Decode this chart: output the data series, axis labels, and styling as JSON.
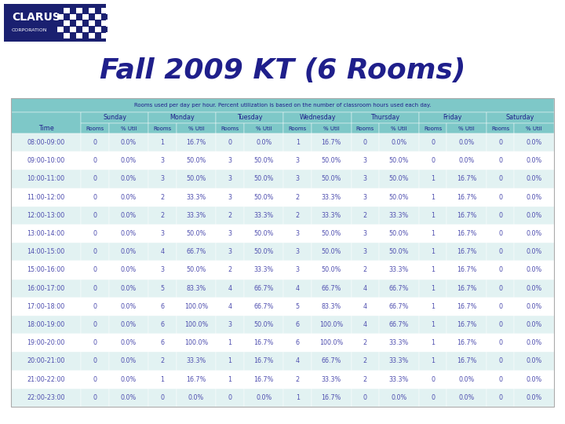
{
  "title": "Fall 2009 KT (6 Rooms)",
  "subtitle": "Rooms used per day per hour. Percent utilization is based on the number of classroom hours used each day.",
  "days": [
    "Sunday",
    "Monday",
    "Tuesday",
    "Wednesday",
    "Thursday",
    "Friday",
    "Saturday"
  ],
  "time_slots": [
    "08:00-09:00",
    "09:00-10:00",
    "10:00-11:00",
    "11:00-12:00",
    "12:00-13:00",
    "13:00-14:00",
    "14:00-15:00",
    "15:00-16:00",
    "16:00-17:00",
    "17:00-18:00",
    "18:00-19:00",
    "19:00-20:00",
    "20:00-21:00",
    "21:00-22:00",
    "22:00-23:00"
  ],
  "table_data": [
    [
      "0",
      "0.0%",
      "1",
      "16.7%",
      "0",
      "0.0%",
      "1",
      "16.7%",
      "0",
      "0.0%",
      "0",
      "0.0%",
      "0",
      "0.0%"
    ],
    [
      "0",
      "0.0%",
      "3",
      "50.0%",
      "3",
      "50.0%",
      "3",
      "50.0%",
      "3",
      "50.0%",
      "0",
      "0.0%",
      "0",
      "0.0%"
    ],
    [
      "0",
      "0.0%",
      "3",
      "50.0%",
      "3",
      "50.0%",
      "3",
      "50.0%",
      "3",
      "50.0%",
      "1",
      "16.7%",
      "0",
      "0.0%"
    ],
    [
      "0",
      "0.0%",
      "2",
      "33.3%",
      "3",
      "50.0%",
      "2",
      "33.3%",
      "3",
      "50.0%",
      "1",
      "16.7%",
      "0",
      "0.0%"
    ],
    [
      "0",
      "0.0%",
      "2",
      "33.3%",
      "2",
      "33.3%",
      "2",
      "33.3%",
      "2",
      "33.3%",
      "1",
      "16.7%",
      "0",
      "0.0%"
    ],
    [
      "0",
      "0.0%",
      "3",
      "50.0%",
      "3",
      "50.0%",
      "3",
      "50.0%",
      "3",
      "50.0%",
      "1",
      "16.7%",
      "0",
      "0.0%"
    ],
    [
      "0",
      "0.0%",
      "4",
      "66.7%",
      "3",
      "50.0%",
      "3",
      "50.0%",
      "3",
      "50.0%",
      "1",
      "16.7%",
      "0",
      "0.0%"
    ],
    [
      "0",
      "0.0%",
      "3",
      "50.0%",
      "2",
      "33.3%",
      "3",
      "50.0%",
      "2",
      "33.3%",
      "1",
      "16.7%",
      "0",
      "0.0%"
    ],
    [
      "0",
      "0.0%",
      "5",
      "83.3%",
      "4",
      "66.7%",
      "4",
      "66.7%",
      "4",
      "66.7%",
      "1",
      "16.7%",
      "0",
      "0.0%"
    ],
    [
      "0",
      "0.0%",
      "6",
      "100.0%",
      "4",
      "66.7%",
      "5",
      "83.3%",
      "4",
      "66.7%",
      "1",
      "16.7%",
      "0",
      "0.0%"
    ],
    [
      "0",
      "0.0%",
      "6",
      "100.0%",
      "3",
      "50.0%",
      "6",
      "100.0%",
      "4",
      "66.7%",
      "1",
      "16.7%",
      "0",
      "0.0%"
    ],
    [
      "0",
      "0.0%",
      "6",
      "100.0%",
      "1",
      "16.7%",
      "6",
      "100.0%",
      "2",
      "33.3%",
      "1",
      "16.7%",
      "0",
      "0.0%"
    ],
    [
      "0",
      "0.0%",
      "2",
      "33.3%",
      "1",
      "16.7%",
      "4",
      "66.7%",
      "2",
      "33.3%",
      "1",
      "16.7%",
      "0",
      "0.0%"
    ],
    [
      "0",
      "0.0%",
      "1",
      "16.7%",
      "1",
      "16.7%",
      "2",
      "33.3%",
      "2",
      "33.3%",
      "0",
      "0.0%",
      "0",
      "0.0%"
    ],
    [
      "0",
      "0.0%",
      "0",
      "0.0%",
      "0",
      "0.0%",
      "1",
      "16.7%",
      "0",
      "0.0%",
      "0",
      "0.0%",
      "0",
      "0.0%"
    ]
  ],
  "bg_color": "#ffffff",
  "title_color": "#1F1F8B",
  "table_header_bg": "#7EC8C8",
  "table_row_even_bg": "#E2F2F2",
  "table_row_odd_bg": "#ffffff",
  "table_text_color": "#5050B0",
  "header_text_color": "#1F1F8B",
  "logo_bg": "#1A2070",
  "logo_checker_light": "#ffffff",
  "title_fontsize": 26,
  "table_fontsize": 5.8,
  "header_fontsize": 5.8,
  "subtitle_fontsize": 5.0
}
